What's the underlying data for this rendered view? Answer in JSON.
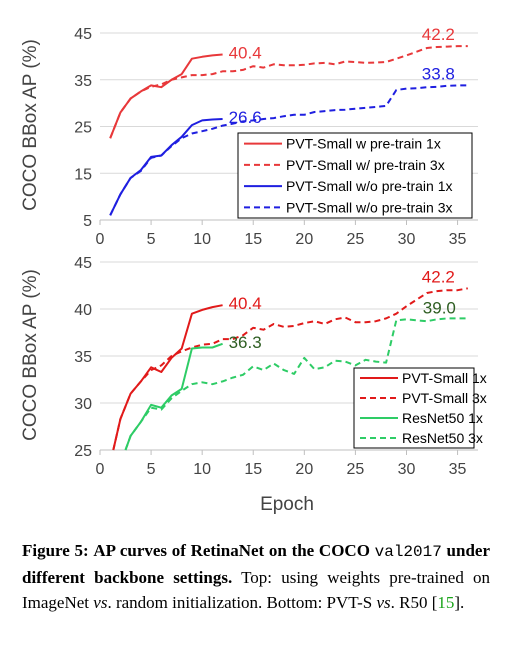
{
  "chart_data": [
    {
      "type": "line",
      "ylabel": "COCO BBox AP (%)",
      "xlim": [
        0,
        37
      ],
      "ylim": [
        5,
        45
      ],
      "yticks": [
        5,
        15,
        25,
        35,
        45
      ],
      "xticks": [
        0,
        5,
        10,
        15,
        20,
        25,
        30,
        35
      ],
      "xtick_labels_shown": true,
      "legend_position": "bottom-right",
      "series": [
        {
          "name": "PVT-Small w pre-train 1x",
          "color": "#e8383a",
          "dash": "solid",
          "end_label": "40.4",
          "x": [
            1,
            2,
            3,
            4,
            5,
            6,
            7,
            8,
            9,
            10,
            11,
            12
          ],
          "y": [
            22.5,
            28.0,
            31.0,
            32.5,
            33.8,
            33.4,
            35.0,
            36.2,
            39.5,
            39.9,
            40.2,
            40.4
          ]
        },
        {
          "name": "PVT-Small w/ pre-train 3x",
          "color": "#e8383a",
          "dash": "dashed",
          "end_label": "42.2",
          "x": [
            1,
            2,
            3,
            4,
            5,
            6,
            7,
            8,
            9,
            10,
            11,
            12,
            13,
            14,
            15,
            16,
            17,
            18,
            19,
            20,
            21,
            22,
            23,
            24,
            25,
            26,
            27,
            28,
            29,
            30,
            31,
            32,
            33,
            34,
            35,
            36
          ],
          "y": [
            22.5,
            28.0,
            31.0,
            32.5,
            33.5,
            34.0,
            35.0,
            35.5,
            36.0,
            36.0,
            36.2,
            36.8,
            36.8,
            37.1,
            37.9,
            37.6,
            38.3,
            38.1,
            38.1,
            38.2,
            38.5,
            38.6,
            38.3,
            38.9,
            38.8,
            38.6,
            38.7,
            38.8,
            39.5,
            40.2,
            41.0,
            41.8,
            42.0,
            42.1,
            42.2,
            42.2
          ]
        },
        {
          "name": "PVT-Small w/o pre-train 1x",
          "color": "#1f1fe0",
          "dash": "solid",
          "end_label": "26.6",
          "x": [
            1,
            2,
            3,
            4,
            5,
            6,
            7,
            8,
            9,
            10,
            11,
            12
          ],
          "y": [
            6.0,
            10.5,
            14.0,
            15.7,
            18.5,
            18.8,
            21.0,
            22.8,
            25.3,
            26.3,
            26.5,
            26.6
          ]
        },
        {
          "name": "PVT-Small w/o pre-train 3x",
          "color": "#1f1fe0",
          "dash": "dashed",
          "end_label": "33.8",
          "x": [
            1,
            2,
            3,
            4,
            5,
            6,
            7,
            8,
            9,
            10,
            11,
            12,
            13,
            14,
            15,
            16,
            17,
            18,
            19,
            20,
            21,
            22,
            23,
            24,
            25,
            26,
            27,
            28,
            29,
            30,
            31,
            32,
            33,
            34,
            35,
            36
          ],
          "y": [
            6.0,
            10.5,
            14.0,
            15.5,
            18.3,
            18.8,
            20.8,
            22.5,
            23.5,
            24.0,
            24.5,
            25.2,
            25.6,
            26.1,
            26.3,
            26.6,
            26.8,
            27.2,
            27.5,
            27.5,
            28.1,
            28.3,
            28.5,
            28.6,
            28.8,
            29.0,
            29.2,
            29.4,
            32.8,
            33.1,
            33.2,
            33.4,
            33.5,
            33.7,
            33.8,
            33.8
          ]
        }
      ]
    },
    {
      "type": "line",
      "xlabel": "Epoch",
      "ylabel": "COCO BBox AP (%)",
      "xlim": [
        0,
        37
      ],
      "ylim": [
        25,
        45
      ],
      "yticks": [
        25,
        30,
        35,
        40,
        45
      ],
      "xticks": [
        0,
        5,
        10,
        15,
        20,
        25,
        30,
        35
      ],
      "xtick_labels_shown": true,
      "legend_position": "bottom-right",
      "series": [
        {
          "name": "PVT-Small 1x",
          "color": "#e11a1a",
          "dash": "solid",
          "end_label": "40.4",
          "x": [
            1.3,
            2,
            3,
            4,
            5,
            6,
            7,
            8,
            9,
            10,
            11,
            12
          ],
          "y": [
            25.0,
            28.3,
            31.0,
            32.3,
            33.8,
            33.3,
            34.8,
            35.8,
            39.5,
            39.9,
            40.2,
            40.4
          ]
        },
        {
          "name": "PVT-Small 3x",
          "color": "#e11a1a",
          "dash": "dashed",
          "end_label": "42.2",
          "x": [
            1.3,
            2,
            3,
            4,
            5,
            6,
            7,
            8,
            9,
            10,
            11,
            12,
            13,
            14,
            15,
            16,
            17,
            18,
            19,
            20,
            21,
            22,
            23,
            24,
            25,
            26,
            27,
            28,
            29,
            30,
            31,
            32,
            33,
            34,
            35,
            36
          ],
          "y": [
            25.0,
            28.3,
            31.0,
            32.3,
            33.5,
            34.0,
            35.0,
            35.5,
            35.9,
            36.2,
            36.3,
            36.8,
            36.8,
            37.2,
            38.0,
            37.8,
            38.4,
            38.1,
            38.2,
            38.5,
            38.7,
            38.4,
            38.9,
            39.1,
            38.6,
            38.6,
            38.7,
            39.0,
            39.5,
            40.3,
            41.0,
            41.7,
            41.9,
            42.0,
            42.0,
            42.2
          ]
        },
        {
          "name": "ResNet50 1x",
          "color": "#2ecc66",
          "dash": "solid",
          "end_label": "36.3",
          "x": [
            2.5,
            3,
            4,
            5,
            6,
            7,
            8,
            9,
            10,
            11,
            12
          ],
          "y": [
            25.0,
            26.5,
            28.0,
            29.8,
            29.5,
            30.8,
            31.5,
            35.8,
            35.9,
            35.9,
            36.3
          ]
        },
        {
          "name": "ResNet50 3x",
          "color": "#2ecc66",
          "dash": "dashed",
          "end_label": "39.0",
          "x": [
            2.5,
            3,
            4,
            5,
            6,
            7,
            8,
            9,
            10,
            11,
            12,
            13,
            14,
            15,
            16,
            17,
            18,
            19,
            20,
            21,
            22,
            23,
            24,
            25,
            26,
            27,
            28,
            29,
            30,
            31,
            32,
            33,
            34,
            35,
            36
          ],
          "y": [
            25.0,
            26.5,
            28.0,
            29.5,
            29.3,
            30.5,
            31.3,
            32.0,
            32.2,
            32.0,
            32.3,
            32.7,
            33.0,
            33.9,
            33.5,
            34.2,
            33.5,
            33.1,
            34.8,
            33.6,
            33.8,
            34.5,
            34.4,
            34.0,
            34.6,
            34.4,
            34.3,
            38.8,
            38.9,
            38.8,
            38.7,
            38.9,
            39.0,
            39.0,
            39.0
          ]
        }
      ]
    }
  ],
  "caption": {
    "figure_label": "Figure 5:",
    "bold_part1": "AP curves of RetinaNet on the COCO",
    "mono_part": "val2017",
    "bold_part2": "under different backbone settings.",
    "text1": "Top: using weights pre-trained on ImageNet",
    "vs1": "vs",
    "text2": ". random initialization. Bottom: PVT-S",
    "vs2": "vs",
    "text3": ". R50 [",
    "cite": "15",
    "text4": "]."
  }
}
